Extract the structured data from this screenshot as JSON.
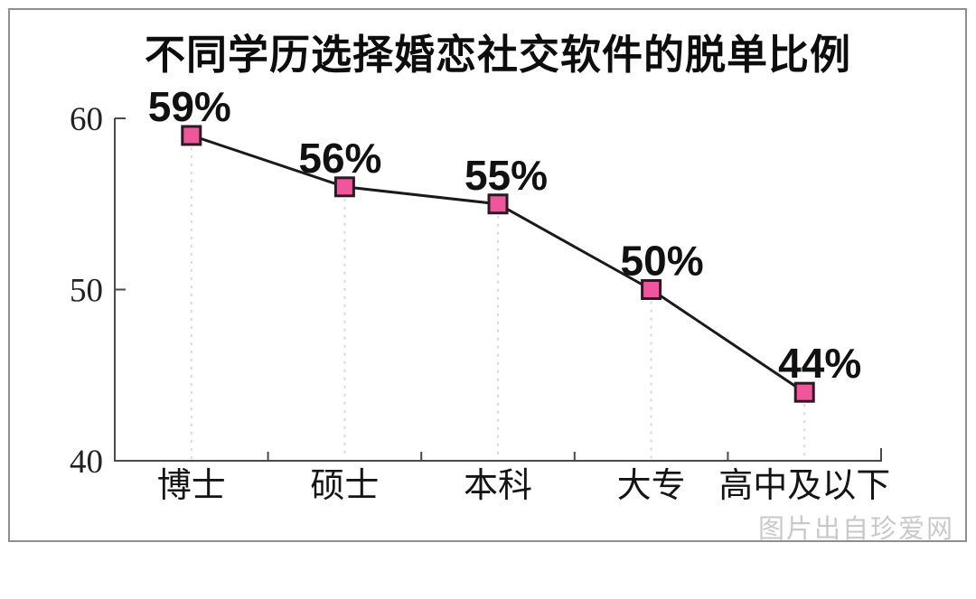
{
  "page": {
    "background": "#ffffff",
    "frame_border_color": "#8f8f8f",
    "watermark": "图片出自珍爱网"
  },
  "chart_data": {
    "type": "line",
    "title": "不同学历选择婚恋社交软件的脱单比例",
    "categories": [
      "博士",
      "硕士",
      "本科",
      "大专",
      "高中及以下"
    ],
    "values": [
      59,
      56,
      55,
      50,
      44
    ],
    "data_labels": [
      "59%",
      "56%",
      "55%",
      "50%",
      "44%"
    ],
    "xlabel": "",
    "ylabel": "",
    "ylim": [
      40,
      60
    ],
    "yticks": [
      40,
      50,
      60
    ],
    "legend_position": "none",
    "grid": "none",
    "guides": "dashed-vertical-from-point-to-axis",
    "marker": "square",
    "colors": {
      "line": "#1a1a1a",
      "marker_fill": "#f0569c",
      "marker_stroke": "#2b1a24",
      "axis": "#4a4a4a",
      "guide": "#d9d9d9",
      "label": "#111111",
      "watermark": "#c9c9c9"
    }
  }
}
